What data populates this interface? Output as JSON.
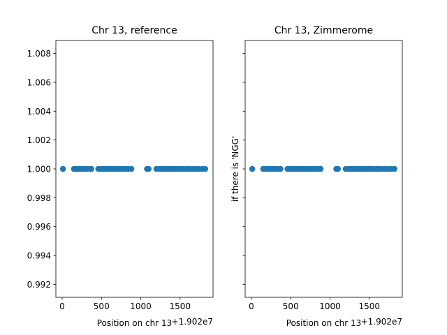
{
  "chart_data": [
    {
      "type": "scatter",
      "title": "Chr 13, reference",
      "xlabel": "Position on chr 13",
      "ylabel": "",
      "offset_label": "+1.902e7",
      "xlim": [
        -80,
        1920
      ],
      "ylim": [
        0.9911,
        1.0089
      ],
      "xticks": [
        0,
        500,
        1000,
        1500
      ],
      "yticks": [
        0.992,
        0.994,
        0.996,
        0.998,
        1.0,
        1.002,
        1.004,
        1.006,
        1.008
      ],
      "ytick_labels": [
        "0.992",
        "0.994",
        "0.996",
        "0.998",
        "1.000",
        "1.002",
        "1.004",
        "1.006",
        "1.008"
      ],
      "grid": false,
      "marker_color": "#1f77b4",
      "x": [
        10,
        150,
        180,
        210,
        240,
        260,
        290,
        320,
        360,
        370,
        460,
        490,
        510,
        540,
        570,
        600,
        620,
        640,
        660,
        680,
        700,
        730,
        760,
        790,
        810,
        840,
        880,
        1080,
        1100,
        1200,
        1240,
        1270,
        1300,
        1330,
        1360,
        1380,
        1400,
        1420,
        1440,
        1470,
        1500,
        1530,
        1550,
        1590,
        1620,
        1660,
        1700,
        1740,
        1780,
        1820
      ],
      "y": [
        1,
        1,
        1,
        1,
        1,
        1,
        1,
        1,
        1,
        1,
        1,
        1,
        1,
        1,
        1,
        1,
        1,
        1,
        1,
        1,
        1,
        1,
        1,
        1,
        1,
        1,
        1,
        1,
        1,
        1,
        1,
        1,
        1,
        1,
        1,
        1,
        1,
        1,
        1,
        1,
        1,
        1,
        1,
        1,
        1,
        1,
        1,
        1,
        1,
        1
      ]
    },
    {
      "type": "scatter",
      "title": "Chr 13, Zimmerome",
      "xlabel": "Position on chr 13",
      "ylabel": "if there is 'NGG'",
      "offset_label": "+1.902e7",
      "xlim": [
        -80,
        1920
      ],
      "ylim": [
        0.9911,
        1.0089
      ],
      "xticks": [
        0,
        500,
        1000,
        1500
      ],
      "yticks": [
        0.992,
        0.994,
        0.996,
        0.998,
        1.0,
        1.002,
        1.004,
        1.006,
        1.008
      ],
      "ytick_labels": [],
      "grid": false,
      "marker_color": "#1f77b4",
      "x": [
        10,
        150,
        180,
        210,
        240,
        260,
        290,
        320,
        360,
        370,
        460,
        490,
        510,
        540,
        570,
        600,
        620,
        640,
        660,
        680,
        700,
        730,
        760,
        790,
        810,
        840,
        880,
        1080,
        1100,
        1200,
        1240,
        1270,
        1300,
        1330,
        1360,
        1380,
        1400,
        1420,
        1440,
        1470,
        1500,
        1530,
        1550,
        1590,
        1620,
        1660,
        1700,
        1740,
        1780,
        1820
      ],
      "y": [
        1,
        1,
        1,
        1,
        1,
        1,
        1,
        1,
        1,
        1,
        1,
        1,
        1,
        1,
        1,
        1,
        1,
        1,
        1,
        1,
        1,
        1,
        1,
        1,
        1,
        1,
        1,
        1,
        1,
        1,
        1,
        1,
        1,
        1,
        1,
        1,
        1,
        1,
        1,
        1,
        1,
        1,
        1,
        1,
        1,
        1,
        1,
        1,
        1,
        1
      ]
    }
  ]
}
